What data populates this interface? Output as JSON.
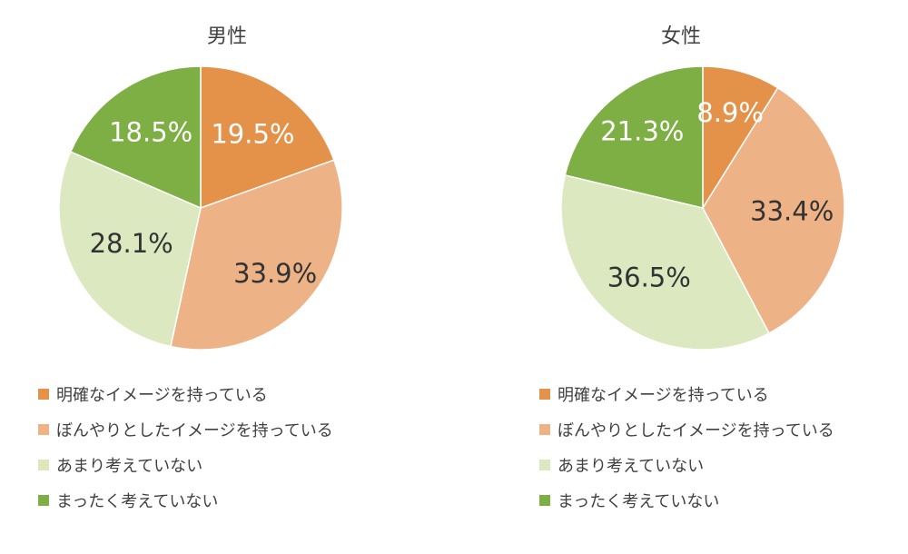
{
  "chart_data": [
    {
      "type": "pie",
      "title": "男性",
      "slices": [
        {
          "label": "明確なイメージを持っている",
          "value": 19.5,
          "value_label": "19.5%",
          "color": "#E4914A",
          "text_color": "#ffffff"
        },
        {
          "label": "ぼんやりとしたイメージを持っている",
          "value": 33.9,
          "value_label": "33.9%",
          "color": "#EDB386",
          "text_color": "#333333"
        },
        {
          "label": "あまり考えていない",
          "value": 28.1,
          "value_label": "28.1%",
          "color": "#DCE8BF",
          "text_color": "#333333"
        },
        {
          "label": "まったく考えていない",
          "value": 18.5,
          "value_label": "18.5%",
          "color": "#7EAF45",
          "text_color": "#ffffff"
        }
      ],
      "start_angle": "12 o'clock",
      "direction": "clockwise",
      "legend_position": "bottom"
    },
    {
      "type": "pie",
      "title": "女性",
      "slices": [
        {
          "label": "明確なイメージを持っている",
          "value": 8.9,
          "value_label": "8.9%",
          "color": "#E4914A",
          "text_color": "#ffffff"
        },
        {
          "label": "ぼんやりとしたイメージを持っている",
          "value": 33.4,
          "value_label": "33.4%",
          "color": "#EDB386",
          "text_color": "#333333"
        },
        {
          "label": "あまり考えていない",
          "value": 36.5,
          "value_label": "36.5%",
          "color": "#DCE8BF",
          "text_color": "#333333"
        },
        {
          "label": "まったく考えていない",
          "value": 21.3,
          "value_label": "21.3%",
          "color": "#7EAF45",
          "text_color": "#ffffff"
        }
      ],
      "start_angle": "12 o'clock",
      "direction": "clockwise",
      "legend_position": "bottom"
    }
  ]
}
